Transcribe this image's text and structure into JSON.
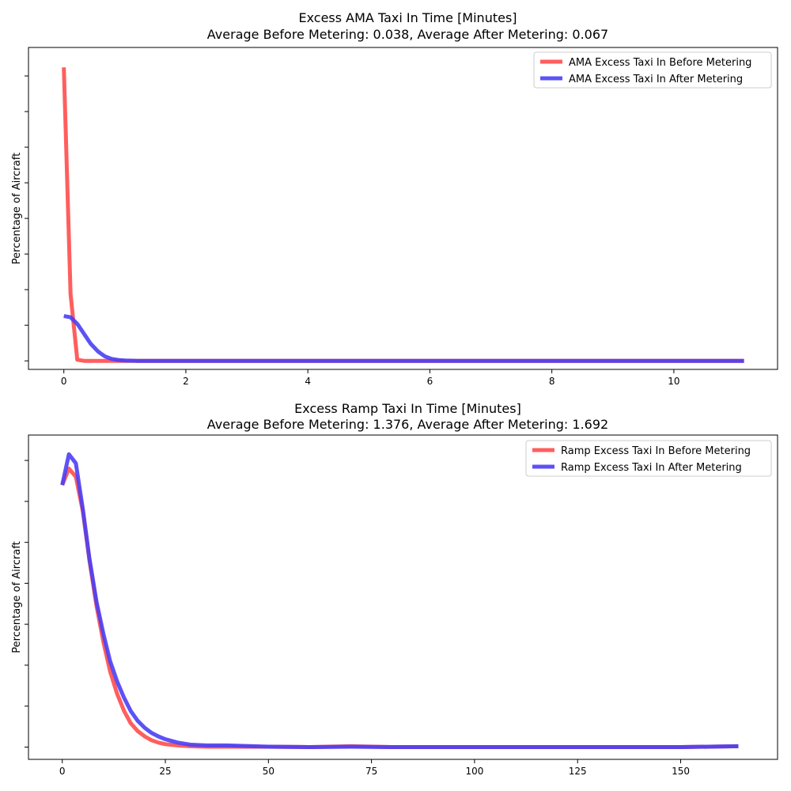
{
  "chart_data": [
    {
      "type": "line",
      "title": "Excess AMA Taxi In Time [Minutes]",
      "subtitle": "Average Before Metering: 0.038, Average After Metering: 0.067",
      "xlabel": "",
      "ylabel": "Percentage of Aircraft",
      "xlim": [
        -0.58,
        11.7
      ],
      "ylim": [
        -0.03,
        1.1
      ],
      "x_ticks": [
        0,
        2,
        4,
        6,
        8,
        10
      ],
      "x_tick_labels": [
        "0",
        "2",
        "4",
        "6",
        "8",
        "10"
      ],
      "y_ticks": [
        0,
        0.125,
        0.25,
        0.375,
        0.5,
        0.625,
        0.75,
        0.875,
        1.0
      ],
      "y_tick_labels_visible": false,
      "grid": false,
      "legend_position": "top-right",
      "series": [
        {
          "name": "AMA Excess Taxi In Before Metering",
          "color": "#ff4d4d",
          "x": [
            0,
            0.11,
            0.22,
            0.33,
            0.5,
            1,
            2,
            4,
            6,
            8,
            10,
            11.15
          ],
          "y": [
            1.03,
            0.235,
            0.004,
            0.0,
            0.0,
            0.0,
            0.0,
            0.0,
            0.0,
            0.0,
            0.0,
            0.0
          ]
        },
        {
          "name": "AMA Excess Taxi In After Metering",
          "color": "#4a3ff5",
          "x": [
            0,
            0.11,
            0.22,
            0.33,
            0.44,
            0.56,
            0.67,
            0.78,
            0.89,
            1.0,
            1.22,
            1.5,
            2,
            4,
            6,
            8,
            10,
            11.15
          ],
          "y": [
            0.157,
            0.153,
            0.13,
            0.095,
            0.06,
            0.033,
            0.016,
            0.007,
            0.003,
            0.001,
            0.0,
            0.0,
            0.0,
            0.0,
            0.0,
            0.0,
            0.0,
            0.0
          ]
        }
      ]
    },
    {
      "type": "line",
      "title": "Excess Ramp Taxi In Time [Minutes]",
      "subtitle": "Average Before Metering: 1.376, Average After Metering: 1.692",
      "xlabel": "",
      "ylabel": "Percentage of Aircraft",
      "xlim": [
        -8.2,
        173.5
      ],
      "ylim": [
        -0.003,
        0.0762
      ],
      "x_ticks": [
        0,
        25,
        50,
        75,
        100,
        125,
        150
      ],
      "x_tick_labels": [
        "0",
        "25",
        "50",
        "75",
        "100",
        "125",
        "150"
      ],
      "y_ticks": [
        0,
        0.01,
        0.02,
        0.03,
        0.04,
        0.05,
        0.06,
        0.07
      ],
      "y_tick_labels_visible": false,
      "grid": false,
      "legend_position": "top-right",
      "series": [
        {
          "name": "Ramp Excess Taxi In Before Metering",
          "color": "#ff4d4d",
          "x": [
            0,
            1.6,
            3.3,
            5,
            6.6,
            8.3,
            10,
            11.6,
            13.3,
            15,
            16.6,
            18.3,
            20,
            21.6,
            23.3,
            25,
            28,
            31,
            35,
            40,
            50,
            60,
            70,
            80,
            100,
            130,
            150,
            164
          ],
          "y": [
            0.064,
            0.068,
            0.066,
            0.0575,
            0.0455,
            0.0345,
            0.0255,
            0.0185,
            0.013,
            0.0088,
            0.0058,
            0.0039,
            0.0026,
            0.0017,
            0.0011,
            0.0007,
            0.0004,
            0.0002,
            0.0001,
            0.0001,
            0.0001,
            0.0,
            0.0002,
            0.0,
            0.0,
            0.0,
            0.0,
            0.0002
          ]
        },
        {
          "name": "Ramp Excess Taxi In After Metering",
          "color": "#4a3ff5",
          "x": [
            0,
            1.6,
            3.3,
            5,
            6.6,
            8.3,
            10,
            11.6,
            13.3,
            15,
            16.6,
            18.3,
            20,
            21.6,
            23.3,
            25,
            28,
            31,
            35,
            40,
            50,
            60,
            70,
            80,
            100,
            130,
            150,
            164
          ],
          "y": [
            0.064,
            0.0715,
            0.0693,
            0.058,
            0.046,
            0.0355,
            0.0275,
            0.021,
            0.016,
            0.012,
            0.0088,
            0.0064,
            0.0047,
            0.0035,
            0.0026,
            0.0019,
            0.0011,
            0.0006,
            0.0004,
            0.0004,
            0.0001,
            0.0,
            0.0001,
            0.0,
            0.0,
            0.0,
            0.0,
            0.0002
          ]
        }
      ]
    }
  ]
}
